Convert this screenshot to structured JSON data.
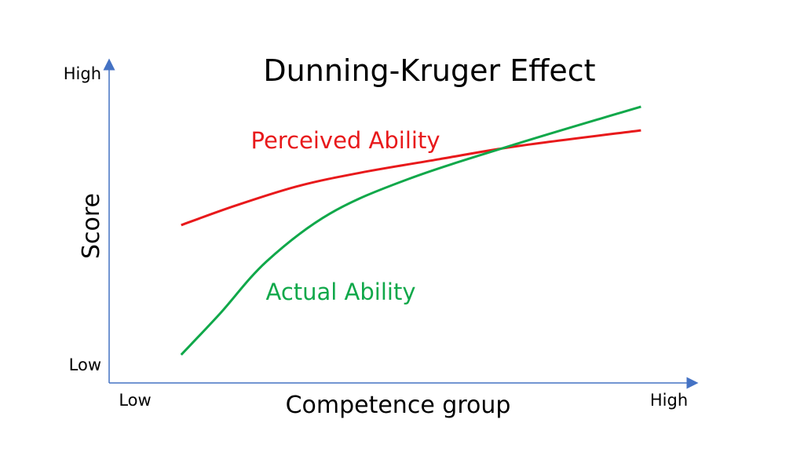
{
  "chart_data": {
    "type": "line",
    "title": "Dunning-Kruger Effect",
    "xlabel": "Competence group",
    "ylabel": "Score",
    "x_tick_labels": [
      "Low",
      "High"
    ],
    "y_tick_labels": [
      "Low",
      "High"
    ],
    "xlim": [
      0,
      10
    ],
    "ylim": [
      0,
      10
    ],
    "grid": false,
    "axis_color": "#4472c4",
    "series": [
      {
        "name": "Perceived Ability",
        "color": "#e8191b",
        "x": [
          1.23,
          2.16,
          3.23,
          4.3,
          5.64,
          6.98,
          9.08
        ],
        "y": [
          4.93,
          5.54,
          6.15,
          6.57,
          6.99,
          7.4,
          7.89
        ]
      },
      {
        "name": "Actual Ability",
        "color": "#10a84a",
        "x": [
          1.23,
          1.89,
          2.69,
          3.77,
          5.11,
          6.98,
          9.08
        ],
        "y": [
          0.88,
          2.16,
          3.8,
          5.29,
          6.37,
          7.48,
          8.63
        ]
      }
    ]
  }
}
